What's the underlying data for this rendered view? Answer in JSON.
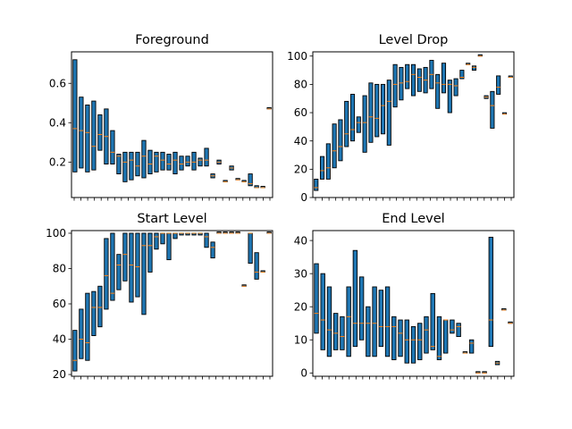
{
  "figure": {
    "box_color": "#1f77b4",
    "median_color": "#ff7f0e",
    "edge_color": "#000000"
  },
  "chart_data": [
    {
      "type": "boxplot",
      "title": "Foreground",
      "xlabel": "",
      "ylabel": "",
      "ylim": [
        0.02,
        0.76
      ],
      "yticks": [
        0.2,
        0.4,
        0.6
      ],
      "ytick_labels": [
        "0.2",
        "0.4",
        "0.6"
      ],
      "n_xticks": 30,
      "boxes": [
        {
          "q1": 0.15,
          "median": 0.37,
          "q3": 0.72
        },
        {
          "q1": 0.17,
          "median": 0.36,
          "q3": 0.53
        },
        {
          "q1": 0.15,
          "median": 0.35,
          "q3": 0.49
        },
        {
          "q1": 0.16,
          "median": 0.28,
          "q3": 0.51
        },
        {
          "q1": 0.26,
          "median": 0.34,
          "q3": 0.44
        },
        {
          "q1": 0.19,
          "median": 0.33,
          "q3": 0.47
        },
        {
          "q1": 0.19,
          "median": 0.25,
          "q3": 0.36
        },
        {
          "q1": 0.14,
          "median": 0.23,
          "q3": 0.24
        },
        {
          "q1": 0.1,
          "median": 0.2,
          "q3": 0.25
        },
        {
          "q1": 0.11,
          "median": 0.21,
          "q3": 0.25
        },
        {
          "q1": 0.13,
          "median": 0.18,
          "q3": 0.25
        },
        {
          "q1": 0.12,
          "median": 0.23,
          "q3": 0.31
        },
        {
          "q1": 0.14,
          "median": 0.19,
          "q3": 0.26
        },
        {
          "q1": 0.15,
          "median": 0.23,
          "q3": 0.25
        },
        {
          "q1": 0.16,
          "median": 0.21,
          "q3": 0.25
        },
        {
          "q1": 0.16,
          "median": 0.19,
          "q3": 0.24
        },
        {
          "q1": 0.14,
          "median": 0.21,
          "q3": 0.25
        },
        {
          "q1": 0.16,
          "median": 0.19,
          "q3": 0.23
        },
        {
          "q1": 0.18,
          "median": 0.2,
          "q3": 0.23
        },
        {
          "q1": 0.16,
          "median": 0.2,
          "q3": 0.25
        },
        {
          "q1": 0.18,
          "median": 0.21,
          "q3": 0.22
        },
        {
          "q1": 0.18,
          "median": 0.21,
          "q3": 0.27
        },
        {
          "q1": 0.12,
          "median": 0.13,
          "q3": 0.14
        },
        {
          "q1": 0.19,
          "median": 0.2,
          "q3": 0.21
        },
        {
          "q1": 0.1,
          "median": 0.1,
          "q3": 0.1
        },
        {
          "q1": 0.16,
          "median": 0.17,
          "q3": 0.18
        },
        {
          "q1": 0.11,
          "median": 0.11,
          "q3": 0.11
        },
        {
          "q1": 0.1,
          "median": 0.1,
          "q3": 0.1
        },
        {
          "q1": 0.08,
          "median": 0.09,
          "q3": 0.14
        },
        {
          "q1": 0.07,
          "median": 0.07,
          "q3": 0.08
        },
        {
          "q1": 0.07,
          "median": 0.07,
          "q3": 0.07
        },
        {
          "q1": 0.47,
          "median": 0.47,
          "q3": 0.47
        }
      ]
    },
    {
      "type": "boxplot",
      "title": "Level Drop",
      "xlabel": "",
      "ylabel": "",
      "ylim": [
        0,
        103
      ],
      "yticks": [
        0,
        20,
        40,
        60,
        80,
        100
      ],
      "ytick_labels": [
        "0",
        "20",
        "40",
        "60",
        "80",
        "100"
      ],
      "n_xticks": 30,
      "boxes": [
        {
          "q1": 5,
          "median": 7,
          "q3": 13
        },
        {
          "q1": 13,
          "median": 19,
          "q3": 29
        },
        {
          "q1": 13,
          "median": 21,
          "q3": 38
        },
        {
          "q1": 21,
          "median": 33,
          "q3": 52
        },
        {
          "q1": 26,
          "median": 36,
          "q3": 55
        },
        {
          "q1": 36,
          "median": 45,
          "q3": 68
        },
        {
          "q1": 40,
          "median": 48,
          "q3": 73
        },
        {
          "q1": 46,
          "median": 53,
          "q3": 57
        },
        {
          "q1": 32,
          "median": 53,
          "q3": 72
        },
        {
          "q1": 39,
          "median": 57,
          "q3": 81
        },
        {
          "q1": 43,
          "median": 56,
          "q3": 80
        },
        {
          "q1": 45,
          "median": 65,
          "q3": 80
        },
        {
          "q1": 37,
          "median": 68,
          "q3": 83
        },
        {
          "q1": 64,
          "median": 80,
          "q3": 94
        },
        {
          "q1": 69,
          "median": 81,
          "q3": 92
        },
        {
          "q1": 77,
          "median": 82,
          "q3": 94
        },
        {
          "q1": 72,
          "median": 87,
          "q3": 94
        },
        {
          "q1": 75,
          "median": 85,
          "q3": 91
        },
        {
          "q1": 74,
          "median": 83,
          "q3": 92
        },
        {
          "q1": 77,
          "median": 87,
          "q3": 97
        },
        {
          "q1": 63,
          "median": 81,
          "q3": 87
        },
        {
          "q1": 74,
          "median": 80,
          "q3": 95
        },
        {
          "q1": 60,
          "median": 80,
          "q3": 83
        },
        {
          "q1": 72,
          "median": 79,
          "q3": 84
        },
        {
          "q1": 84,
          "median": 85,
          "q3": 90
        },
        {
          "q1": 94,
          "median": 94,
          "q3": 94
        },
        {
          "q1": 90,
          "median": 92,
          "q3": 93
        },
        {
          "q1": 100,
          "median": 100,
          "q3": 100
        },
        {
          "q1": 70,
          "median": 71,
          "q3": 72
        },
        {
          "q1": 49,
          "median": 65,
          "q3": 75
        },
        {
          "q1": 73,
          "median": 78,
          "q3": 86
        },
        {
          "q1": 59,
          "median": 59,
          "q3": 59
        },
        {
          "q1": 85,
          "median": 85,
          "q3": 85
        }
      ]
    },
    {
      "type": "boxplot",
      "title": "Start Level",
      "xlabel": "",
      "ylabel": "",
      "ylim": [
        19,
        101.5
      ],
      "yticks": [
        20,
        40,
        60,
        80,
        100
      ],
      "ytick_labels": [
        "20",
        "40",
        "60",
        "80",
        "100"
      ],
      "n_xticks": 30,
      "boxes": [
        {
          "q1": 22,
          "median": 28,
          "q3": 45
        },
        {
          "q1": 29,
          "median": 40,
          "q3": 57
        },
        {
          "q1": 28,
          "median": 38,
          "q3": 66
        },
        {
          "q1": 42,
          "median": 58,
          "q3": 67
        },
        {
          "q1": 47,
          "median": 58,
          "q3": 70
        },
        {
          "q1": 57,
          "median": 76,
          "q3": 97
        },
        {
          "q1": 62,
          "median": 66,
          "q3": 100
        },
        {
          "q1": 68,
          "median": 82,
          "q3": 88
        },
        {
          "q1": 73,
          "median": 88,
          "q3": 100
        },
        {
          "q1": 61,
          "median": 82,
          "q3": 100
        },
        {
          "q1": 64,
          "median": 81,
          "q3": 100
        },
        {
          "q1": 54,
          "median": 93,
          "q3": 100
        },
        {
          "q1": 78,
          "median": 93,
          "q3": 100
        },
        {
          "q1": 91,
          "median": 98,
          "q3": 100
        },
        {
          "q1": 94,
          "median": 100,
          "q3": 100
        },
        {
          "q1": 85,
          "median": 100,
          "q3": 100
        },
        {
          "q1": 97,
          "median": 100,
          "q3": 100
        },
        {
          "q1": 99,
          "median": 100,
          "q3": 100
        },
        {
          "q1": 99,
          "median": 100,
          "q3": 100
        },
        {
          "q1": 99,
          "median": 100,
          "q3": 100
        },
        {
          "q1": 99,
          "median": 100,
          "q3": 100
        },
        {
          "q1": 92,
          "median": 98,
          "q3": 100
        },
        {
          "q1": 86,
          "median": 92,
          "q3": 95
        },
        {
          "q1": 100,
          "median": 100,
          "q3": 100
        },
        {
          "q1": 100,
          "median": 100,
          "q3": 100
        },
        {
          "q1": 100,
          "median": 100,
          "q3": 100
        },
        {
          "q1": 100,
          "median": 100,
          "q3": 100
        },
        {
          "q1": 70,
          "median": 70,
          "q3": 70
        },
        {
          "q1": 83,
          "median": 100,
          "q3": 100
        },
        {
          "q1": 74,
          "median": 78,
          "q3": 89
        },
        {
          "q1": 78,
          "median": 78,
          "q3": 78
        },
        {
          "q1": 100,
          "median": 100,
          "q3": 100
        }
      ]
    },
    {
      "type": "boxplot",
      "title": "End Level",
      "xlabel": "",
      "ylabel": "",
      "ylim": [
        -1,
        43
      ],
      "yticks": [
        0,
        10,
        20,
        30,
        40
      ],
      "ytick_labels": [
        "0",
        "10",
        "20",
        "30",
        "40"
      ],
      "n_xticks": 30,
      "boxes": [
        {
          "q1": 12,
          "median": 18,
          "q3": 33
        },
        {
          "q1": 7,
          "median": 16,
          "q3": 30
        },
        {
          "q1": 5,
          "median": 13,
          "q3": 26
        },
        {
          "q1": 7,
          "median": 12,
          "q3": 18
        },
        {
          "q1": 7,
          "median": 11,
          "q3": 17
        },
        {
          "q1": 5,
          "median": 17,
          "q3": 26
        },
        {
          "q1": 8,
          "median": 15,
          "q3": 37
        },
        {
          "q1": 10,
          "median": 15,
          "q3": 29
        },
        {
          "q1": 5,
          "median": 15,
          "q3": 20
        },
        {
          "q1": 5,
          "median": 15,
          "q3": 26
        },
        {
          "q1": 8,
          "median": 14,
          "q3": 25
        },
        {
          "q1": 5,
          "median": 14,
          "q3": 26
        },
        {
          "q1": 4,
          "median": 14,
          "q3": 17
        },
        {
          "q1": 5,
          "median": 12,
          "q3": 16
        },
        {
          "q1": 3,
          "median": 10,
          "q3": 16
        },
        {
          "q1": 3,
          "median": 10,
          "q3": 14
        },
        {
          "q1": 4,
          "median": 10,
          "q3": 15
        },
        {
          "q1": 6,
          "median": 13,
          "q3": 17
        },
        {
          "q1": 7,
          "median": 8,
          "q3": 24
        },
        {
          "q1": 4,
          "median": 5,
          "q3": 17
        },
        {
          "q1": 6,
          "median": 16,
          "q3": 16
        },
        {
          "q1": 12,
          "median": 13,
          "q3": 16
        },
        {
          "q1": 11,
          "median": 14,
          "q3": 15
        },
        {
          "q1": 6,
          "median": 6,
          "q3": 6
        },
        {
          "q1": 6,
          "median": 9,
          "q3": 10
        },
        {
          "q1": 0,
          "median": 0,
          "q3": 0
        },
        {
          "q1": 0,
          "median": 0,
          "q3": 0
        },
        {
          "q1": 8,
          "median": 16,
          "q3": 41
        },
        {
          "q1": 2.5,
          "median": 3,
          "q3": 3.5
        },
        {
          "q1": 19,
          "median": 19,
          "q3": 19
        },
        {
          "q1": 15,
          "median": 15,
          "q3": 15
        }
      ]
    }
  ]
}
